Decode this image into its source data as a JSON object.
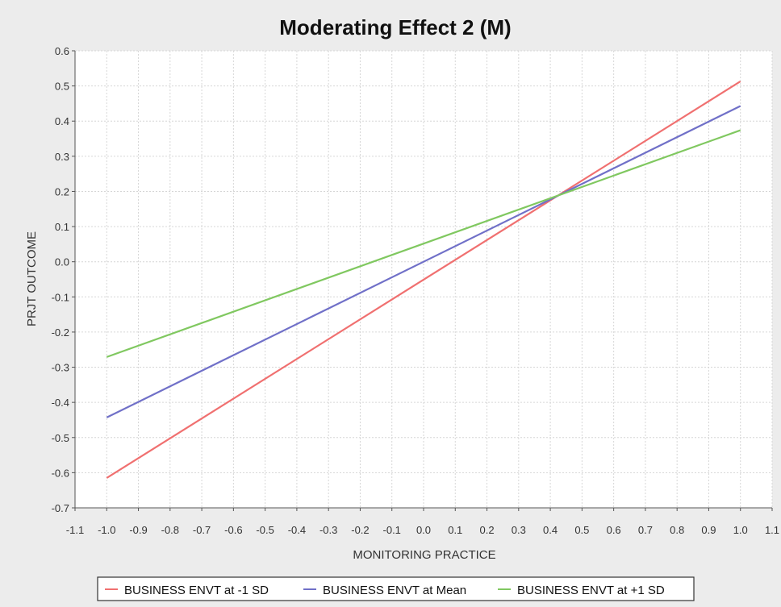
{
  "chart_data": {
    "type": "line",
    "title": "Moderating Effect 2 (M)",
    "xlabel": "MONITORING PRACTICE",
    "ylabel": "PRJT OUTCOME",
    "xlim": [
      -1.1,
      1.1
    ],
    "ylim": [
      -0.7,
      0.6
    ],
    "x_ticks": [
      "-1.1",
      "-1.0",
      "-0.9",
      "-0.8",
      "-0.7",
      "-0.6",
      "-0.5",
      "-0.4",
      "-0.3",
      "-0.2",
      "-0.1",
      "0.0",
      "0.1",
      "0.2",
      "0.3",
      "0.4",
      "0.5",
      "0.6",
      "0.7",
      "0.8",
      "0.9",
      "1.0",
      "1.1"
    ],
    "y_ticks": [
      "0.6",
      "0.5",
      "0.4",
      "0.3",
      "0.2",
      "0.1",
      "0.0",
      "-0.1",
      "-0.2",
      "-0.3",
      "-0.4",
      "-0.5",
      "-0.6",
      "-0.7"
    ],
    "grid": true,
    "legend_position": "bottom",
    "series": [
      {
        "name": "BUSINESS ENVT at -1 SD",
        "color": "#f07070",
        "x": [
          -1.0,
          1.0
        ],
        "y": [
          -0.615,
          0.513
        ]
      },
      {
        "name": "BUSINESS ENVT at Mean",
        "color": "#7070c8",
        "x": [
          -1.0,
          1.0
        ],
        "y": [
          -0.443,
          0.443
        ]
      },
      {
        "name": "BUSINESS ENVT at +1 SD",
        "color": "#80c860",
        "x": [
          -1.0,
          1.0
        ],
        "y": [
          -0.271,
          0.374
        ]
      }
    ]
  }
}
